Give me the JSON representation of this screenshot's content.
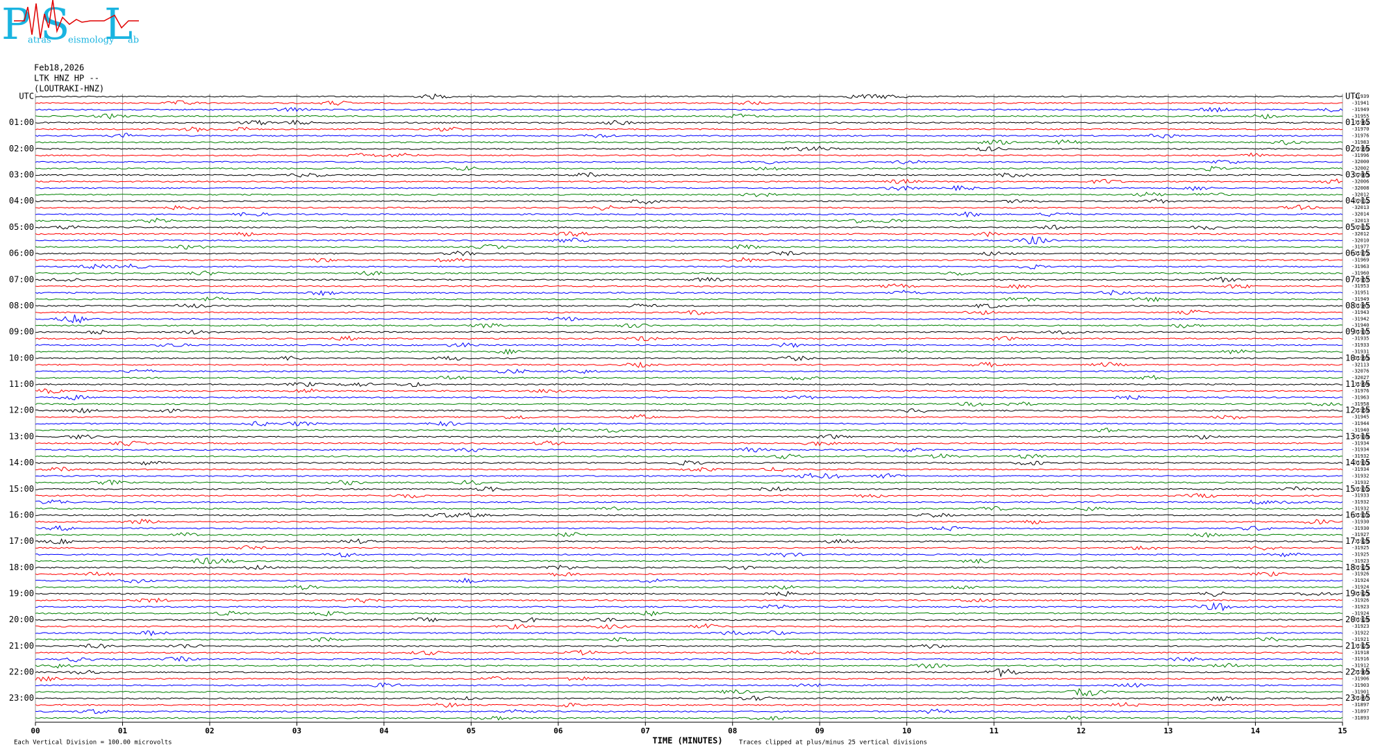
{
  "header": {
    "logo": [
      "P",
      "atras",
      "S",
      "eismology",
      "L",
      "ab"
    ],
    "date": "Feb18,2026",
    "station": "LTK HNZ HP --",
    "site": "(LOUTRAKI-HNZ)"
  },
  "chart_data": {
    "type": "helicorder",
    "left_labels": [
      "UTC",
      "01:00",
      "02:00",
      "03:00",
      "04:00",
      "05:00",
      "06:00",
      "07:00",
      "08:00",
      "09:00",
      "10:00",
      "11:00",
      "12:00",
      "13:00",
      "14:00",
      "15:00",
      "16:00",
      "17:00",
      "18:00",
      "19:00",
      "20:00",
      "21:00",
      "22:00",
      "23:00"
    ],
    "right_labels": [
      "UTC",
      "01:15",
      "02:15",
      "03:15",
      "04:15",
      "05:15",
      "06:15",
      "07:15",
      "08:15",
      "09:15",
      "10:15",
      "11:15",
      "12:15",
      "13:15",
      "14:15",
      "15:15",
      "16:15",
      "17:15",
      "18:15",
      "19:15",
      "20:15",
      "21:15",
      "22:15",
      "23:15"
    ],
    "offsets": [
      -31939,
      -31941,
      -31949,
      -31955,
      -31962,
      -31970,
      -31976,
      -31983,
      -31990,
      -31996,
      -32000,
      -32002,
      -32005,
      -32006,
      -32008,
      -32012,
      -32012,
      -32013,
      -32014,
      -32013,
      -32012,
      -32012,
      -32010,
      -31977,
      -31972,
      -31969,
      -31963,
      -31960,
      -31957,
      -31953,
      -31951,
      -31949,
      -31947,
      -31943,
      -31942,
      -31940,
      -31937,
      -31935,
      -31933,
      -31931,
      -31993,
      -32113,
      -32076,
      -32027,
      -31994,
      -31976,
      -31963,
      -31958,
      -31950,
      -31945,
      -31944,
      -31940,
      -31936,
      -31934,
      -31934,
      -31932,
      -31933,
      -31934,
      -31932,
      -31932,
      -31932,
      -31933,
      -31932,
      -31932,
      -31932,
      -31930,
      -31930,
      -31927,
      -31926,
      -31925,
      -31925,
      -31923,
      -31923,
      -31926,
      -31924,
      -31924,
      -31925,
      -31926,
      -31923,
      -31924,
      -31926,
      -31923,
      -31922,
      -31921,
      -31921,
      -31918,
      -31916,
      -31912,
      -31909,
      -31906,
      -31903,
      -31901,
      -31897,
      -31897,
      -31897,
      -31893
    ],
    "trace_colors": [
      "#000000",
      "#ff0000",
      "#0000ff",
      "#008000"
    ],
    "xlim": [
      0,
      15
    ],
    "xticks": [
      {
        "value": 0,
        "label": "00"
      },
      {
        "value": 1,
        "label": "01"
      },
      {
        "value": 2,
        "label": "02"
      },
      {
        "value": 3,
        "label": "03"
      },
      {
        "value": 4,
        "label": "04"
      },
      {
        "value": 5,
        "label": "05"
      },
      {
        "value": 6,
        "label": "06"
      },
      {
        "value": 7,
        "label": "07"
      },
      {
        "value": 8,
        "label": "08"
      },
      {
        "value": 9,
        "label": "09"
      },
      {
        "value": 10,
        "label": "10"
      },
      {
        "value": 11,
        "label": "11"
      },
      {
        "value": 12,
        "label": "12"
      },
      {
        "value": 13,
        "label": "13"
      },
      {
        "value": 14,
        "label": "14"
      },
      {
        "value": 15,
        "label": "15"
      }
    ],
    "xlabel": "TIME (MINUTES)",
    "scale_note": "Each Vertical Division =  100.00 microvolts",
    "clip_note": "Traces clipped at plus/minus 25 vertical divisions",
    "grid": true
  }
}
